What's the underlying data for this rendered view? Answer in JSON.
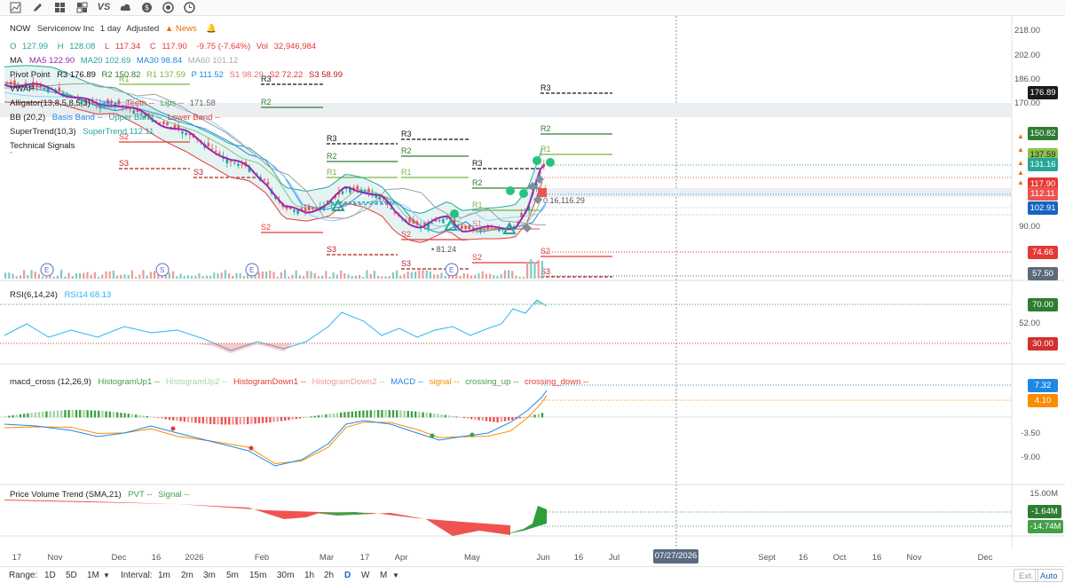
{
  "toolbar": {
    "icons": [
      "chart-icon",
      "pencil-icon",
      "grid-icon",
      "grid-icon",
      "compare-vs-icon",
      "cloud-icon",
      "dollar-icon",
      "target-icon",
      "clock-icon"
    ],
    "vs_label": "VS"
  },
  "header": {
    "symbol": "NOW",
    "name": "Servicenow Inc",
    "interval": "1 day",
    "adjusted": "Adjusted",
    "news": "News"
  },
  "ohlc": {
    "open_label": "O",
    "open": "127.99",
    "high_label": "H",
    "high": "128.08",
    "low_label": "L",
    "low": "117.34",
    "close_label": "C",
    "close": "117.90",
    "change": "-9.75 (-7.64%)",
    "vol_label": "Vol",
    "vol": "32,946,984"
  },
  "indicators": {
    "ma": {
      "name": "MA",
      "ma5": "MA5 122.90",
      "ma20": "MA20 102.69",
      "ma30": "MA30 98.84",
      "ma60": "MA60 101.12"
    },
    "pivot": {
      "name": "Pivot Point",
      "r3": "R3 176.89",
      "r2": "R2 150.82",
      "r1": "R1 137.59",
      "p": "P 111.52",
      "s1": "S1 98.29",
      "s2": "S2 72.22",
      "s3": "S3 58.99"
    },
    "vwap": {
      "name": "VWAP"
    },
    "alligator": {
      "name": "Alligator(13,8,5,8,5,3)",
      "jaw": "Jaw --",
      "teeth": "Teeth --",
      "lips": "Lips --",
      "val": "171.58"
    },
    "bb": {
      "name": "BB (20,2)",
      "basis": "Basis Band --",
      "upper": "Upper Band --",
      "lower": "Lower Band --"
    },
    "supertrend": {
      "name": "SuperTrend(10,3)",
      "val": "SuperTrend 112.11"
    },
    "tech": {
      "name": "Technical Signals"
    }
  },
  "price_axis": {
    "ticks": [
      "218.00",
      "202.00",
      "186.00",
      "170.00",
      "90.00"
    ],
    "boxes": [
      {
        "label": "176.89",
        "color": "#1b1b1b"
      },
      {
        "label": "150.82",
        "color": "#2e7d32"
      },
      {
        "label": "137.59",
        "color": "#8bc34a"
      },
      {
        "label": "131.16",
        "color": "#26a69a"
      },
      {
        "label": "117.90",
        "color": "#e53935"
      },
      {
        "label": "112.11",
        "color": "#ef5350"
      },
      {
        "label": "102.91",
        "color": "#1565c0"
      },
      {
        "label": "74.66",
        "color": "#e53935"
      },
      {
        "label": "57.50",
        "color": "#5c6b7a"
      }
    ]
  },
  "chart_labels": {
    "r3": "R3",
    "r2": "R2",
    "r1": "R1",
    "s1": "S1",
    "s2": "S2",
    "s3": "S3",
    "low_marker": "81.24",
    "cur_marker": "0.16,116.29"
  },
  "rsi": {
    "title": "RSI(6,14,24)",
    "rsi14": "RSI14 68.13",
    "ticks": [
      "52.00"
    ],
    "box_high": {
      "label": "70.00",
      "color": "#2e7d32"
    },
    "box_low": {
      "label": "30.00",
      "color": "#d32f2f"
    }
  },
  "macd": {
    "title": "macd_cross (12,26,9)",
    "hup1": "HistogramUp1 --",
    "hup2": "HistogramUp2 --",
    "hdown1": "HistogramDown1 --",
    "hdown2": "HistogramDown2 --",
    "macd": "MACD --",
    "signal": "signal --",
    "crossing_up": "crossing_up --",
    "crossing_down": "crossing_down --",
    "ticks": [
      "-3.50",
      "-9.00"
    ],
    "box_macd": {
      "label": "7.32",
      "color": "#1e88e5"
    },
    "box_signal": {
      "label": "4.10",
      "color": "#fb8c00"
    }
  },
  "pvt": {
    "title": "Price Volume Trend (SMA,21)",
    "pvt": "PVT --",
    "signal": "Signal --",
    "ticks": [
      "15.00M"
    ],
    "box_pvt": {
      "label": "-1.64M",
      "color": "#2e7d32"
    },
    "box_signal": {
      "label": "-14.74M",
      "color": "#43a047"
    }
  },
  "x_axis": {
    "labels": [
      "17",
      "Nov",
      "Dec",
      "16",
      "2026",
      "Feb",
      "Mar",
      "17",
      "Apr",
      "May",
      "Jun",
      "16",
      "Jul",
      "Sept",
      "16",
      "Oct",
      "16",
      "Nov",
      "Dec"
    ],
    "crosshair_date": "07/27/2026"
  },
  "bottom": {
    "range_label": "Range:",
    "ranges": [
      "1D",
      "5D",
      "1M"
    ],
    "interval_label": "Interval:",
    "intervals": [
      "1m",
      "2m",
      "3m",
      "5m",
      "15m",
      "30m",
      "1h",
      "2h",
      "D",
      "W",
      "M"
    ],
    "active_interval": "D",
    "ext": "Ext.",
    "auto": "Auto"
  },
  "colors": {
    "up": "#26a69a",
    "down": "#ef5350",
    "ma5": "#9c27b0",
    "accent": "#1565c0"
  }
}
